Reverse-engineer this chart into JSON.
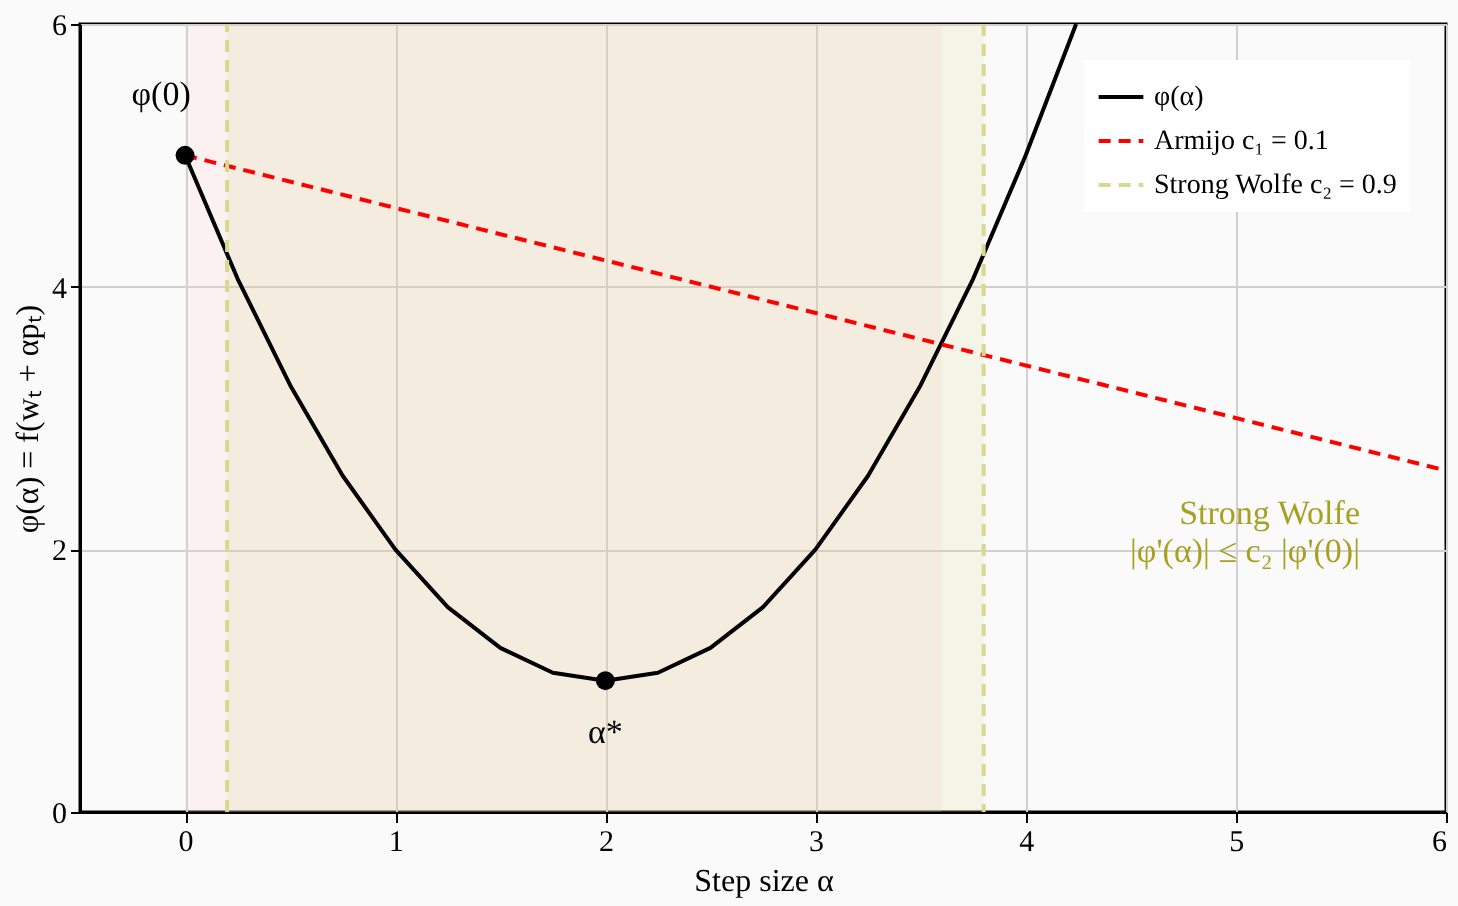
{
  "chart_data": {
    "type": "line",
    "xlabel": "Step size α",
    "ylabel": "φ(α) = f(wₜ + αpₜ)",
    "xlim": [
      -0.5,
      6
    ],
    "ylim": [
      0,
      6
    ],
    "xticks": [
      0,
      1,
      2,
      3,
      4,
      5,
      6
    ],
    "yticks": [
      0,
      2,
      4,
      6
    ],
    "grid": true,
    "legend": "top right",
    "series": [
      {
        "name": "φ(α)",
        "color": "#000000",
        "line_style": "solid",
        "x": [
          0,
          0.25,
          0.5,
          0.75,
          1,
          1.25,
          1.5,
          1.75,
          2,
          2.25,
          2.5,
          2.75,
          3,
          3.25,
          3.5,
          3.75,
          4,
          4.24
        ],
        "values": [
          5,
          4.06,
          3.25,
          2.56,
          2,
          1.56,
          1.25,
          1.06,
          1,
          1.06,
          1.25,
          1.56,
          2,
          2.56,
          3.25,
          4.06,
          5,
          6
        ]
      },
      {
        "name": "Armijo c₁ = 0.1",
        "color": "#ff0000",
        "line_style": "dashed",
        "x": [
          0,
          6
        ],
        "values": [
          5,
          2.6
        ]
      },
      {
        "name": "Strong Wolfe c₂ = 0.9",
        "color": "#d8d890",
        "line_style": "dashed",
        "x": [
          0.2,
          0.2,
          null,
          3.8,
          3.8
        ],
        "values": [
          0,
          6,
          null,
          6,
          0
        ]
      },
      {
        "type": "scatter",
        "color": "#000000",
        "marker": "circle",
        "x": [
          0,
          2
        ],
        "values": [
          5,
          1
        ]
      }
    ],
    "bands": [
      {
        "axis": "x",
        "from": 0,
        "to": 3.6,
        "color": "#ffc8c8"
      },
      {
        "axis": "x",
        "from": 0.2,
        "to": 3.8,
        "color": "#d8d890"
      }
    ],
    "annotations": [
      {
        "text": "φ(0)",
        "x": 0,
        "y": 5
      },
      {
        "text": "α*",
        "x": 2,
        "y": 1
      },
      "Strong Wolfe\n|φ'(α)| ≤ c₂ |φ'(0)|"
    ]
  }
}
